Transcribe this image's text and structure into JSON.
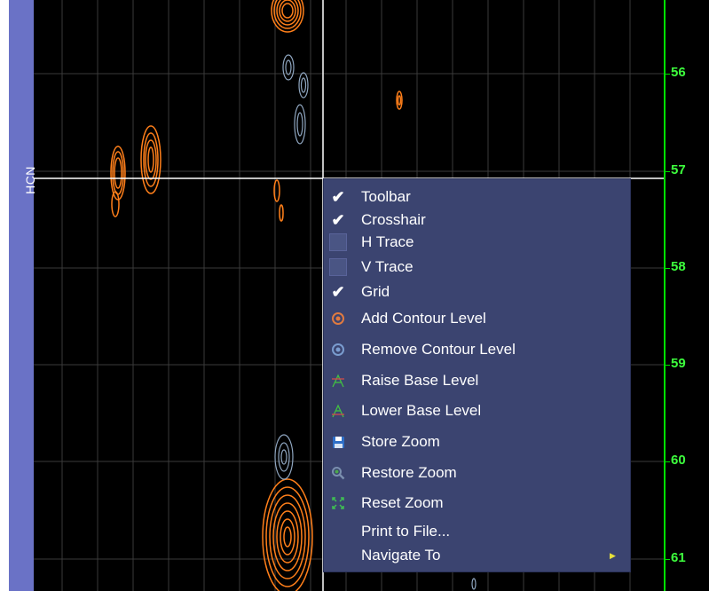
{
  "axis": {
    "title": "HCN",
    "y_tick_labels": [
      "56",
      "57",
      "58",
      "59",
      "60",
      "61"
    ]
  },
  "colors": {
    "background": "#000000",
    "positive_contours": "#ff7f1a",
    "negative_contours": "#8fa6c0",
    "axis_green": "#00e000",
    "axis_bar": "#6a72c6",
    "menu_background": "#3b4470"
  },
  "crosshair": {
    "visible": true
  },
  "grid": {
    "visible": true
  },
  "menu": {
    "items": [
      {
        "label": "Toolbar",
        "icon": "check-icon",
        "checked": true
      },
      {
        "label": "Crosshair",
        "icon": "check-icon",
        "checked": true
      },
      {
        "label": "H Trace",
        "icon": "checkbox-empty-icon",
        "checked": false
      },
      {
        "label": "V Trace",
        "icon": "checkbox-empty-icon",
        "checked": false
      },
      {
        "label": "Grid",
        "icon": "check-icon",
        "checked": true
      },
      {
        "label": "Add Contour Level",
        "icon": "add-contour-icon"
      },
      {
        "label": "Remove Contour Level",
        "icon": "remove-contour-icon"
      },
      {
        "label": "Raise Base Level",
        "icon": "raise-base-icon"
      },
      {
        "label": "Lower Base Level",
        "icon": "lower-base-icon"
      },
      {
        "label": "Store Zoom",
        "icon": "store-zoom-icon"
      },
      {
        "label": "Restore Zoom",
        "icon": "restore-zoom-icon"
      },
      {
        "label": "Reset Zoom",
        "icon": "reset-zoom-icon"
      },
      {
        "label": "Print to File...",
        "icon": ""
      },
      {
        "label": "Navigate To",
        "icon": "",
        "submenu": true,
        "submenu_icon": "submenu-arrow-icon"
      }
    ]
  }
}
